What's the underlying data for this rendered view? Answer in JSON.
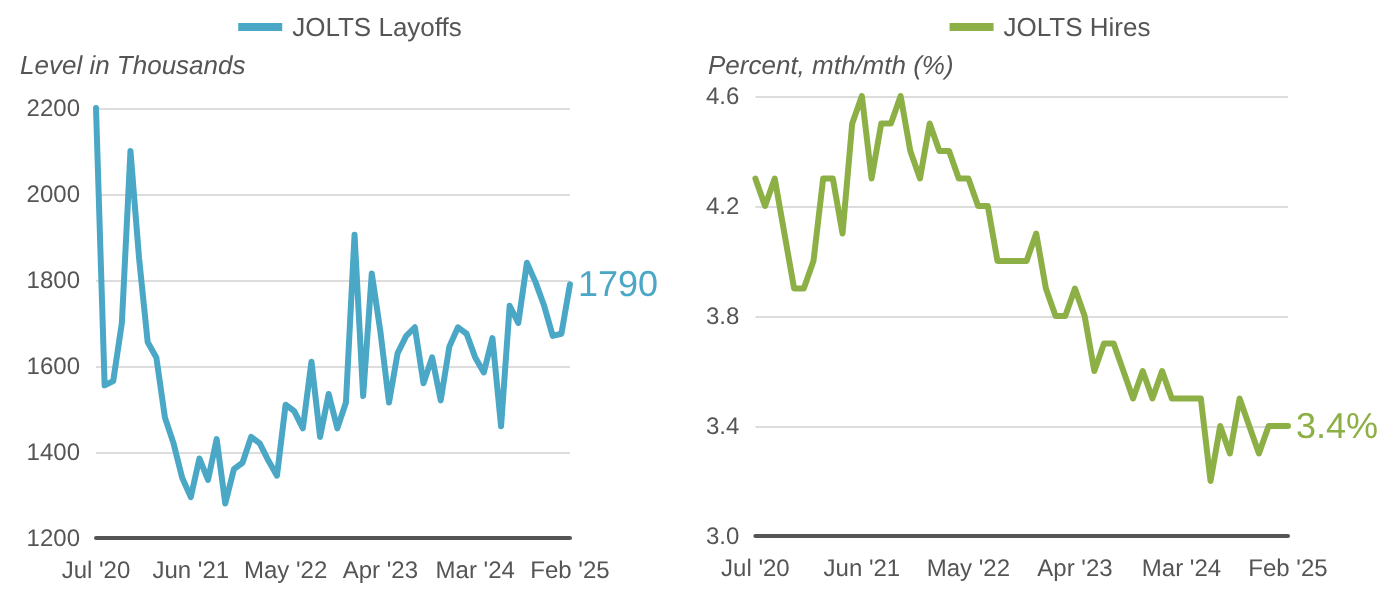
{
  "chart_data": [
    {
      "type": "line",
      "ylabel": "Level in Thousands",
      "legend": "top",
      "grid": "y",
      "marker": "none",
      "line_style": "solid",
      "categories": [
        "Jul '20",
        null,
        null,
        null,
        null,
        null,
        null,
        null,
        null,
        null,
        null,
        "Jun '21",
        null,
        null,
        null,
        null,
        null,
        null,
        null,
        null,
        null,
        null,
        "May '22",
        null,
        null,
        null,
        null,
        null,
        null,
        null,
        null,
        null,
        null,
        "Apr '23",
        null,
        null,
        null,
        null,
        null,
        null,
        null,
        null,
        null,
        null,
        "Mar '24",
        null,
        null,
        null,
        null,
        null,
        null,
        null,
        null,
        null,
        null,
        "Feb '25"
      ],
      "ylim": [
        1200,
        2200
      ],
      "yticks": [
        1200,
        1400,
        1600,
        1800,
        2000,
        2200
      ],
      "series": [
        {
          "name": "JOLTS Layoffs",
          "color": "#4aa8c6",
          "values": [
            2200,
            1555,
            1565,
            1700,
            2100,
            1850,
            1655,
            1620,
            1480,
            1420,
            1340,
            1295,
            1385,
            1335,
            1430,
            1280,
            1360,
            1375,
            1435,
            1420,
            1380,
            1345,
            1510,
            1495,
            1455,
            1610,
            1435,
            1535,
            1455,
            1515,
            1905,
            1530,
            1815,
            1680,
            1515,
            1630,
            1670,
            1690,
            1560,
            1620,
            1520,
            1645,
            1690,
            1675,
            1620,
            1585,
            1665,
            1460,
            1740,
            1700,
            1840,
            1795,
            1740,
            1670,
            1675,
            1790
          ],
          "value_labels": [
            null,
            null,
            null,
            null,
            null,
            null,
            null,
            null,
            null,
            null,
            null,
            null,
            null,
            null,
            null,
            null,
            null,
            null,
            null,
            null,
            null,
            null,
            null,
            null,
            null,
            null,
            null,
            null,
            null,
            null,
            null,
            null,
            null,
            null,
            null,
            null,
            null,
            null,
            null,
            null,
            null,
            null,
            null,
            null,
            null,
            null,
            null,
            null,
            null,
            null,
            null,
            null,
            null,
            null,
            null,
            "1790"
          ]
        }
      ]
    },
    {
      "type": "line",
      "ylabel": "Percent, mth/mth (%)",
      "legend": "top",
      "grid": "y",
      "marker": "none",
      "line_style": "solid",
      "categories": [
        "Jul '20",
        null,
        null,
        null,
        null,
        null,
        null,
        null,
        null,
        null,
        null,
        "Jun '21",
        null,
        null,
        null,
        null,
        null,
        null,
        null,
        null,
        null,
        null,
        "May '22",
        null,
        null,
        null,
        null,
        null,
        null,
        null,
        null,
        null,
        null,
        "Apr '23",
        null,
        null,
        null,
        null,
        null,
        null,
        null,
        null,
        null,
        null,
        "Mar '24",
        null,
        null,
        null,
        null,
        null,
        null,
        null,
        null,
        null,
        null,
        "Feb '25"
      ],
      "ylim": [
        3.0,
        4.6
      ],
      "yticks": [
        {
          "value": 3.0,
          "label": "3.0"
        },
        3.4,
        3.8,
        4.2,
        4.6
      ],
      "series": [
        {
          "name": "JOLTS Hires",
          "color": "#8db046",
          "values": [
            4.3,
            4.2,
            4.3,
            4.1,
            3.9,
            3.9,
            4.0,
            4.3,
            4.3,
            4.1,
            4.5,
            4.6,
            4.3,
            4.5,
            4.5,
            4.6,
            4.4,
            4.3,
            4.5,
            4.4,
            4.4,
            4.3,
            4.3,
            4.2,
            4.2,
            4.0,
            4.0,
            4.0,
            4.0,
            4.1,
            3.9,
            3.8,
            3.8,
            3.9,
            3.8,
            3.6,
            3.7,
            3.7,
            3.6,
            3.5,
            3.6,
            3.5,
            3.6,
            3.5,
            3.5,
            3.5,
            3.5,
            3.2,
            3.4,
            3.3,
            3.5,
            3.4,
            3.3,
            3.4,
            3.4,
            3.4
          ],
          "value_labels": [
            null,
            null,
            null,
            null,
            null,
            null,
            null,
            null,
            null,
            null,
            null,
            null,
            null,
            null,
            null,
            null,
            null,
            null,
            null,
            null,
            null,
            null,
            null,
            null,
            null,
            null,
            null,
            null,
            null,
            null,
            null,
            null,
            null,
            null,
            null,
            null,
            null,
            null,
            null,
            null,
            null,
            null,
            null,
            null,
            null,
            null,
            null,
            null,
            null,
            null,
            null,
            null,
            null,
            null,
            null,
            "3.4%"
          ]
        }
      ]
    }
  ]
}
